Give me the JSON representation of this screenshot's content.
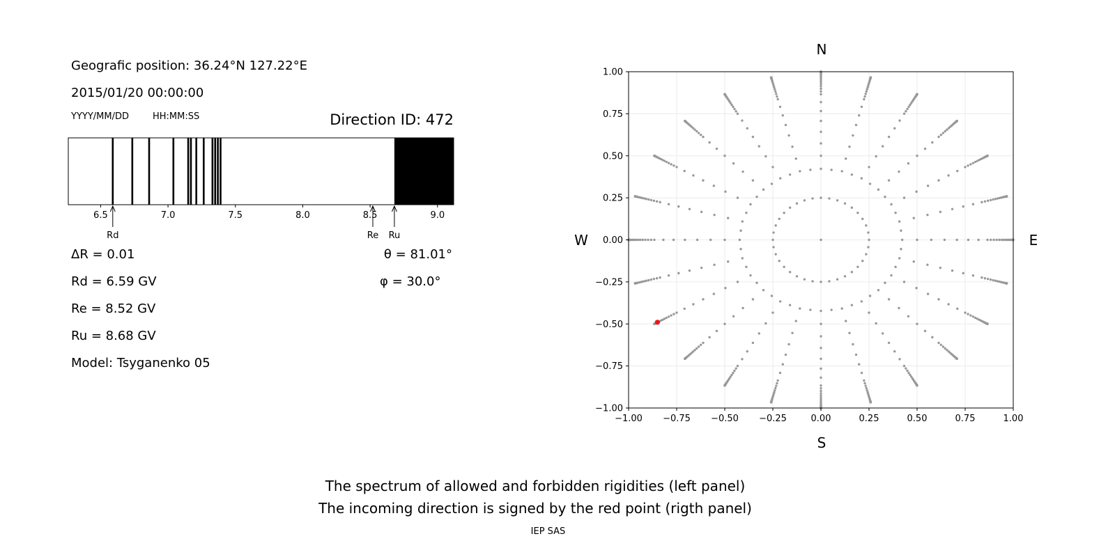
{
  "info": {
    "position": "Geografic position: 36.24°N 127.22°E",
    "datetime": "2015/01/20 00:00:00",
    "date_format": "YYYY/MM/DD",
    "time_format": "HH:MM:SS",
    "direction_id": "Direction ID: 472"
  },
  "results": {
    "delta_r": "ΔR = 0.01",
    "rd": "Rd = 6.59 GV",
    "re": "Re = 8.52 GV",
    "ru": "Ru = 8.68 GV",
    "model": "Model: Tsyganenko 05",
    "theta": "θ = 81.01°",
    "phi": "φ = 30.0°"
  },
  "captions": {
    "line1": "The spectrum of allowed and forbidden rigidities (left panel)",
    "line2": "The incoming direction is signed by the red point (rigth panel)",
    "credit": "IEP SAS"
  },
  "colors": {
    "forbidden": "#000000",
    "grid_point": "#999999",
    "highlight": "#e8181a",
    "grid_line": "#ebebeb"
  },
  "chart_data": [
    {
      "type": "spectrum",
      "title": "",
      "xlim": [
        6.26,
        9.12
      ],
      "ticks": [
        6.5,
        7.0,
        7.5,
        8.0,
        8.5,
        9.0
      ],
      "tick_labels": [
        "6.5",
        "7.0",
        "7.5",
        "8.0",
        "8.5",
        "9.0"
      ],
      "forbidden_lines": [
        6.59,
        6.735,
        6.86,
        7.04,
        7.15,
        7.17,
        7.21,
        7.265,
        7.33,
        7.35,
        7.37,
        7.39
      ],
      "forbidden_band": [
        8.68,
        9.12
      ],
      "markers": [
        {
          "label": "Rd",
          "value": 6.59
        },
        {
          "label": "Re",
          "value": 8.52
        },
        {
          "label": "Ru",
          "value": 8.68
        }
      ]
    },
    {
      "type": "scatter",
      "xlim": [
        -1.0,
        1.0
      ],
      "ylim": [
        -1.0,
        1.0
      ],
      "grid": true,
      "ticks": [
        -1.0,
        -0.75,
        -0.5,
        -0.25,
        0.0,
        0.25,
        0.5,
        0.75,
        1.0
      ],
      "tick_labels": [
        "−1.00",
        "−0.75",
        "−0.50",
        "−0.25",
        "0.00",
        "0.25",
        "0.50",
        "0.75",
        "1.00"
      ],
      "compass": {
        "north": "N",
        "south": "S",
        "west": "W",
        "east": "E"
      },
      "grid_points": {
        "description_free": true,
        "rays": 24,
        "theta_from_deg": 15,
        "theta_to_deg": 85,
        "theta_step_deg": 5,
        "radial_samples_outer_from_deg": 65,
        "radial_samples_outer_step_deg": 1.5,
        "theta_rings_deg": [
          15,
          25,
          35,
          45,
          55,
          65,
          70,
          75,
          78,
          81,
          83,
          85,
          87,
          89
        ],
        "phi_step_deg": 15,
        "ring_center_theta_deg": 14.5,
        "ring_center_points": 36
      },
      "highlighted_point": {
        "x": -0.85,
        "y": -0.49,
        "theta_deg": 81.01,
        "phi_deg": 30.0
      }
    }
  ]
}
